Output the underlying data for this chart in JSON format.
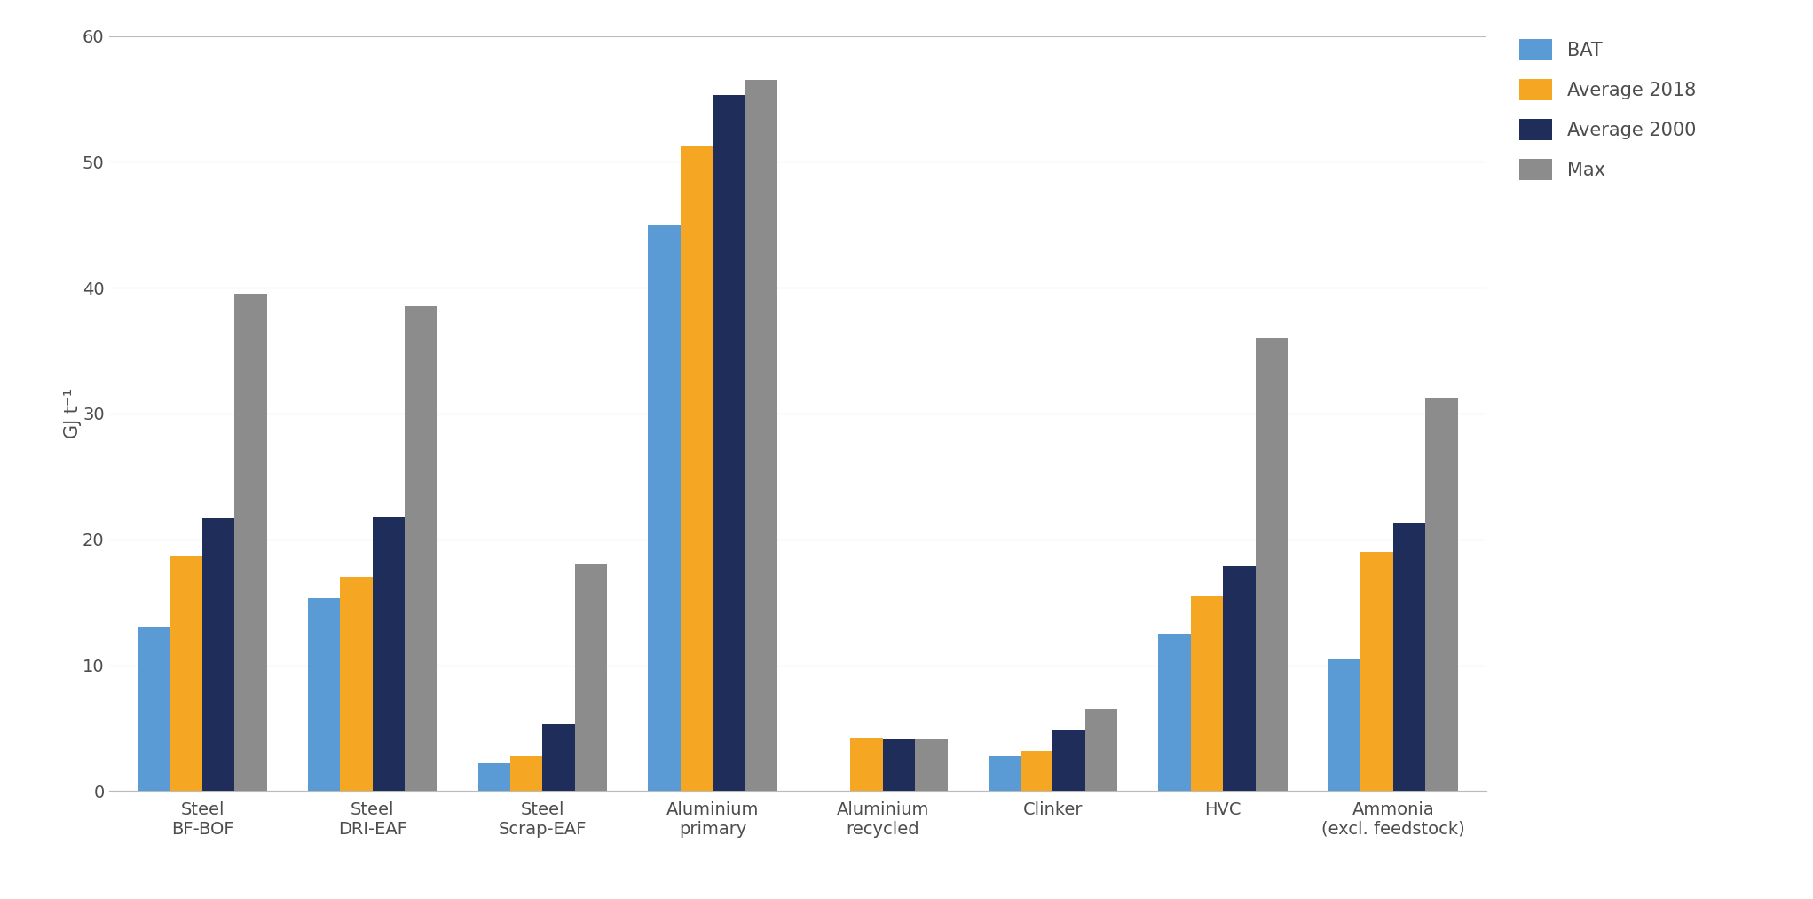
{
  "categories": [
    "Steel\nBF-BOF",
    "Steel\nDRI-EAF",
    "Steel\nScrap-EAF",
    "Aluminium\nprimary",
    "Aluminium\nrecycled",
    "Clinker",
    "HVC",
    "Ammonia\n(excl. feedstock)"
  ],
  "series": {
    "BAT": [
      13.0,
      15.3,
      2.2,
      45.0,
      0.0,
      2.8,
      12.5,
      10.5
    ],
    "Average 2018": [
      18.7,
      17.0,
      2.8,
      51.3,
      4.2,
      3.2,
      15.5,
      19.0
    ],
    "Average 2000": [
      21.7,
      21.8,
      5.3,
      55.3,
      4.1,
      4.8,
      17.9,
      21.3
    ],
    "Max": [
      39.5,
      38.5,
      18.0,
      56.5,
      4.1,
      6.5,
      36.0,
      31.3
    ]
  },
  "colors": {
    "BAT": "#5B9BD5",
    "Average 2018": "#F5A623",
    "Average 2000": "#1F2D5A",
    "Max": "#8C8C8C"
  },
  "ylabel": "GJ t⁻¹",
  "ylim": [
    0,
    60
  ],
  "yticks": [
    0,
    10,
    20,
    30,
    40,
    50,
    60
  ],
  "background_color": "#FFFFFF",
  "grid_color": "#BBBBBB",
  "text_color": "#4D4D4D",
  "bar_width": 0.19,
  "legend_fontsize": 15,
  "tick_fontsize": 14,
  "ylabel_fontsize": 15
}
